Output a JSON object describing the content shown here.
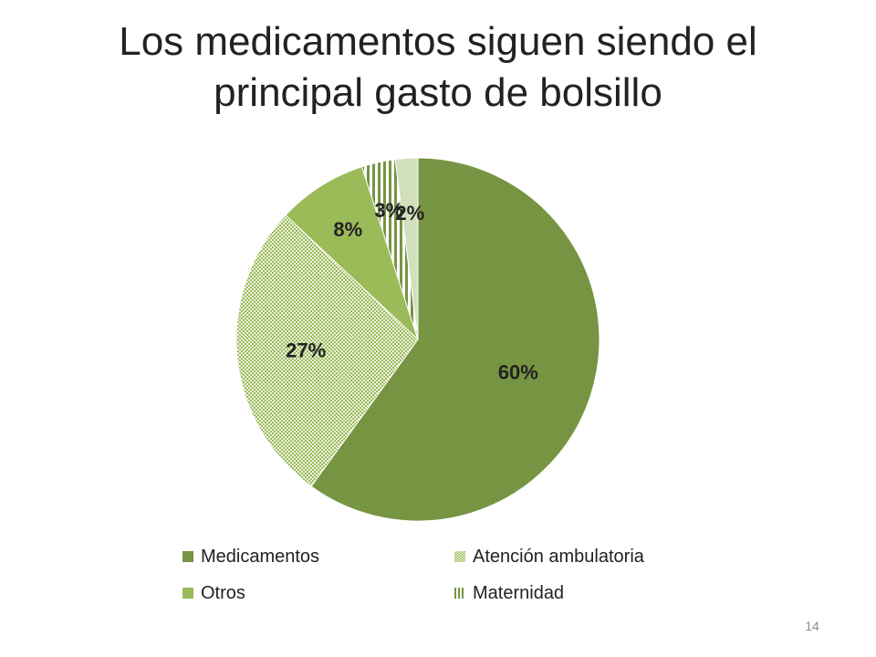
{
  "slide": {
    "title_line1": "Los medicamentos siguen siendo el",
    "title_line2": "principal gasto de bolsillo",
    "page_number": "14"
  },
  "chart_data": {
    "type": "pie",
    "title": "Los medicamentos siguen siendo el principal gasto de bolsillo",
    "start_angle_deg": 0,
    "direction": "clockwise",
    "legend_position": "bottom",
    "slices": [
      {
        "label": "Medicamentos",
        "value": 60,
        "display": "60%",
        "color": "#779443",
        "pattern": "solid"
      },
      {
        "label": "Atención ambulatoria",
        "value": 27,
        "display": "27%",
        "color": "#9bbb59",
        "pattern": "dots"
      },
      {
        "label": "Otros",
        "value": 8,
        "display": "8%",
        "color": "#9bbb59",
        "pattern": "solid"
      },
      {
        "label": "Maternidad",
        "value": 3,
        "display": "3%",
        "color": "#779443",
        "pattern": "vertical-lines"
      },
      {
        "label": "",
        "value": 2,
        "display": "2%",
        "color": "#d2dfbd",
        "pattern": "solid"
      }
    ]
  }
}
